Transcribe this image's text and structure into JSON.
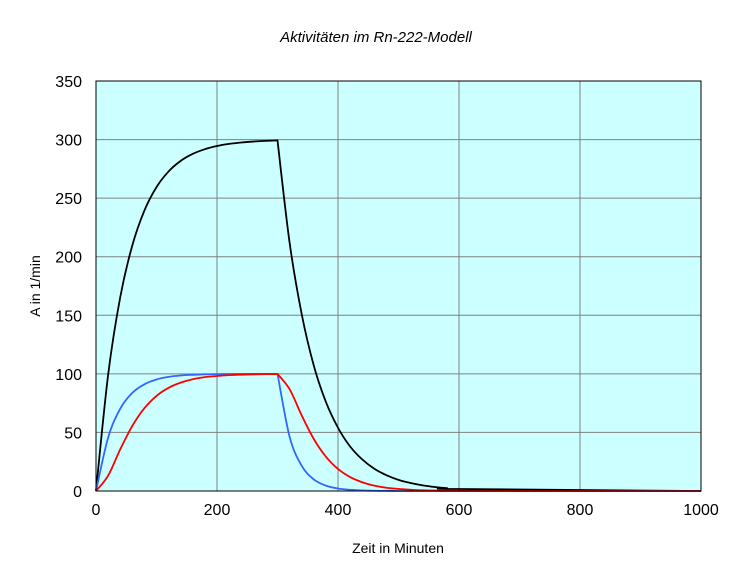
{
  "chart_data": {
    "type": "line",
    "title": "Aktivitäten im Rn-222-Modell",
    "xlabel": "Zeit in Minuten",
    "ylabel": "A in 1/min",
    "xlim": [
      0,
      1000
    ],
    "ylim": [
      0,
      350
    ],
    "xticks": [
      0,
      200,
      400,
      600,
      800,
      1000
    ],
    "yticks": [
      0,
      50,
      100,
      150,
      200,
      250,
      300,
      350
    ],
    "grid": true,
    "background": "#CCFFFF",
    "x": [
      0,
      20,
      40,
      60,
      80,
      100,
      120,
      140,
      160,
      180,
      200,
      220,
      240,
      260,
      280,
      300,
      320,
      340,
      360,
      380,
      400,
      420,
      440,
      460,
      480,
      500,
      520,
      540,
      560,
      580,
      600,
      1000
    ],
    "series": [
      {
        "name": "black",
        "color": "#000000",
        "values": [
          0,
          99,
          165.3,
          209.6,
          239.4,
          259.4,
          272.8,
          281.8,
          287.8,
          291.8,
          294.5,
          296.3,
          297.5,
          298.3,
          298.9,
          299.3,
          212,
          151,
          107,
          76,
          54,
          38,
          27,
          19,
          13.5,
          9.5,
          6.8,
          4.8,
          3.4,
          2.4,
          1.7,
          0
        ]
      },
      {
        "name": "blue",
        "color": "#3366FF",
        "values": [
          0,
          45.5,
          70.2,
          83.8,
          91.1,
          95.2,
          97.4,
          98.6,
          99.2,
          99.6,
          99.8,
          99.9,
          100,
          100,
          100,
          100,
          46.3,
          21.5,
          9.9,
          4.6,
          2.1,
          1.0,
          0.5,
          0.2,
          0.1,
          0,
          0,
          0,
          0,
          0,
          0,
          0
        ]
      },
      {
        "name": "red",
        "color": "#FF0000",
        "values": [
          0,
          13.1,
          35.5,
          55.6,
          70.7,
          81.2,
          88.1,
          92.5,
          95.4,
          97.2,
          98.2,
          98.9,
          99.3,
          99.6,
          99.8,
          99.9,
          86.9,
          64.5,
          44.4,
          29.3,
          18.8,
          11.9,
          7.5,
          4.6,
          2.8,
          1.8,
          1.1,
          0.6,
          0.4,
          0.2,
          0.1,
          0
        ]
      }
    ]
  }
}
